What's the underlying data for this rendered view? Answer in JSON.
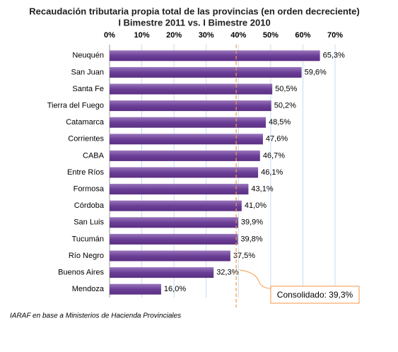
{
  "chart_data": {
    "type": "bar",
    "orientation": "horizontal",
    "title": "Recaudación tributaria propia total de las provincias (en orden decreciente)",
    "subtitle": "I Bimestre 2011 vs. I Bimestre 2010",
    "categories": [
      "Neuquén",
      "San Juan",
      "Santa Fe",
      "Tierra del Fuego",
      "Catamarca",
      "Corrientes",
      "CABA",
      "Entre Ríos",
      "Formosa",
      "Córdoba",
      "San Luis",
      "Tucumán",
      "Río Negro",
      "Buenos Aires",
      "Mendoza"
    ],
    "values": [
      65.3,
      59.6,
      50.5,
      50.2,
      48.5,
      47.6,
      46.7,
      46.1,
      43.1,
      41.0,
      39.9,
      39.8,
      37.5,
      32.3,
      16.0
    ],
    "value_labels": [
      "65,3%",
      "59,6%",
      "50,5%",
      "50,2%",
      "48,5%",
      "47,6%",
      "46,7%",
      "46,1%",
      "43,1%",
      "41,0%",
      "39,9%",
      "39,8%",
      "37,5%",
      "32,3%",
      "16,0%"
    ],
    "color": "#6b3f96",
    "xlim": [
      0,
      70
    ],
    "xticks": [
      {
        "value": 0,
        "label": "0%"
      },
      {
        "value": 10,
        "label": "10%"
      },
      {
        "value": 20,
        "label": "20%"
      },
      {
        "value": 30,
        "label": "30%"
      },
      {
        "value": 40,
        "label": "40%"
      },
      {
        "value": 50,
        "label": "50%"
      },
      {
        "value": 60,
        "label": "60%"
      },
      {
        "value": 70,
        "label": "70%"
      }
    ],
    "grid": true,
    "annotation": {
      "value": 39.3,
      "label": "Consolidado: 39,3%",
      "color": "#f79646"
    },
    "source": "IARAF en base a Ministerios de Hacienda Provinciales"
  }
}
